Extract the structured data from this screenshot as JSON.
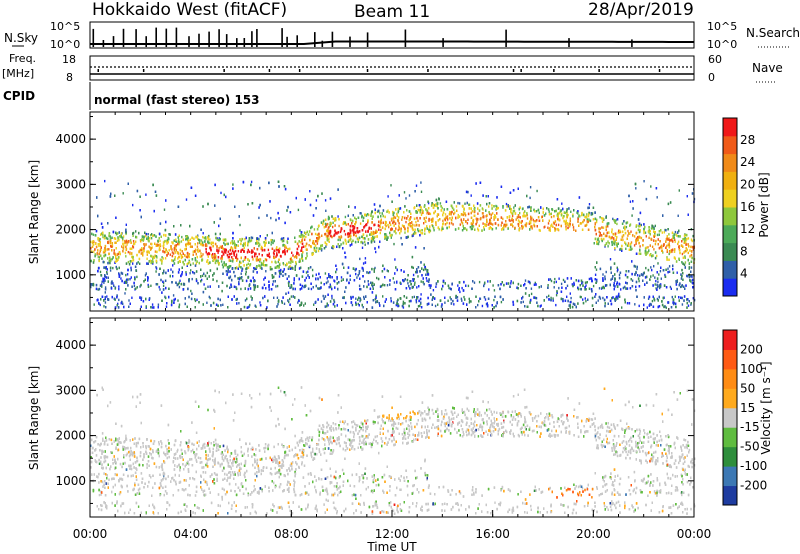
{
  "header": {
    "radar": "Hokkaido West (fitACF)",
    "beam": "Beam 11",
    "date": "28/Apr/2019"
  },
  "sky_panel": {
    "left_label": "N.Sky",
    "right_label": "N.Search",
    "left_ticks": [
      "10^5",
      "10^0"
    ],
    "right_ticks": [
      "10^5",
      "10^0"
    ]
  },
  "freq_panel": {
    "left_label_top": "Freq.",
    "left_label_unit": "[MHz]",
    "left_ticks": [
      "18",
      "8"
    ],
    "right_label": "Nave",
    "right_ticks": [
      "60",
      "0"
    ]
  },
  "cpid": {
    "label": "CPID",
    "mode": "normal (fast stereo) 153"
  },
  "chart_data": [
    {
      "type": "heatmap",
      "name": "power",
      "ylabel": "Slant Range [km]",
      "yticks": [
        "1000",
        "2000",
        "3000",
        "4000"
      ],
      "yrange": [
        200,
        4600
      ],
      "xrange_hours": [
        0,
        24
      ],
      "colorbar_label": "Power [dB]",
      "colorbar_ticks": [
        "4",
        "8",
        "12",
        "16",
        "20",
        "24",
        "28"
      ],
      "colorbar_colors": [
        "#1a2cf0",
        "#2f5fa8",
        "#3a8a52",
        "#4caa58",
        "#8ec83c",
        "#eed020",
        "#f0b010",
        "#f08a18",
        "#f05a18",
        "#f01818"
      ]
    },
    {
      "type": "heatmap",
      "name": "velocity",
      "ylabel": "Slant Range [km]",
      "yticks": [
        "1000",
        "2000",
        "3000",
        "4000"
      ],
      "yrange": [
        200,
        4600
      ],
      "xrange_hours": [
        0,
        24
      ],
      "colorbar_label": "Velocity [m s⁻¹]",
      "colorbar_ticks": [
        "200",
        "100",
        "50",
        "15",
        "-15",
        "-50",
        "-100",
        "-200"
      ],
      "colorbar_colors": [
        "#1e3ca0",
        "#3c78b4",
        "#2e8e3c",
        "#5fbc40",
        "#c8c8c8",
        "#ffaa1e",
        "#ff8c14",
        "#ff5a14",
        "#ee1e1e"
      ]
    }
  ],
  "x_axis": {
    "ticks": [
      "00:00",
      "04:00",
      "08:00",
      "12:00",
      "16:00",
      "20:00",
      "00:00"
    ],
    "label": "Time UT"
  }
}
